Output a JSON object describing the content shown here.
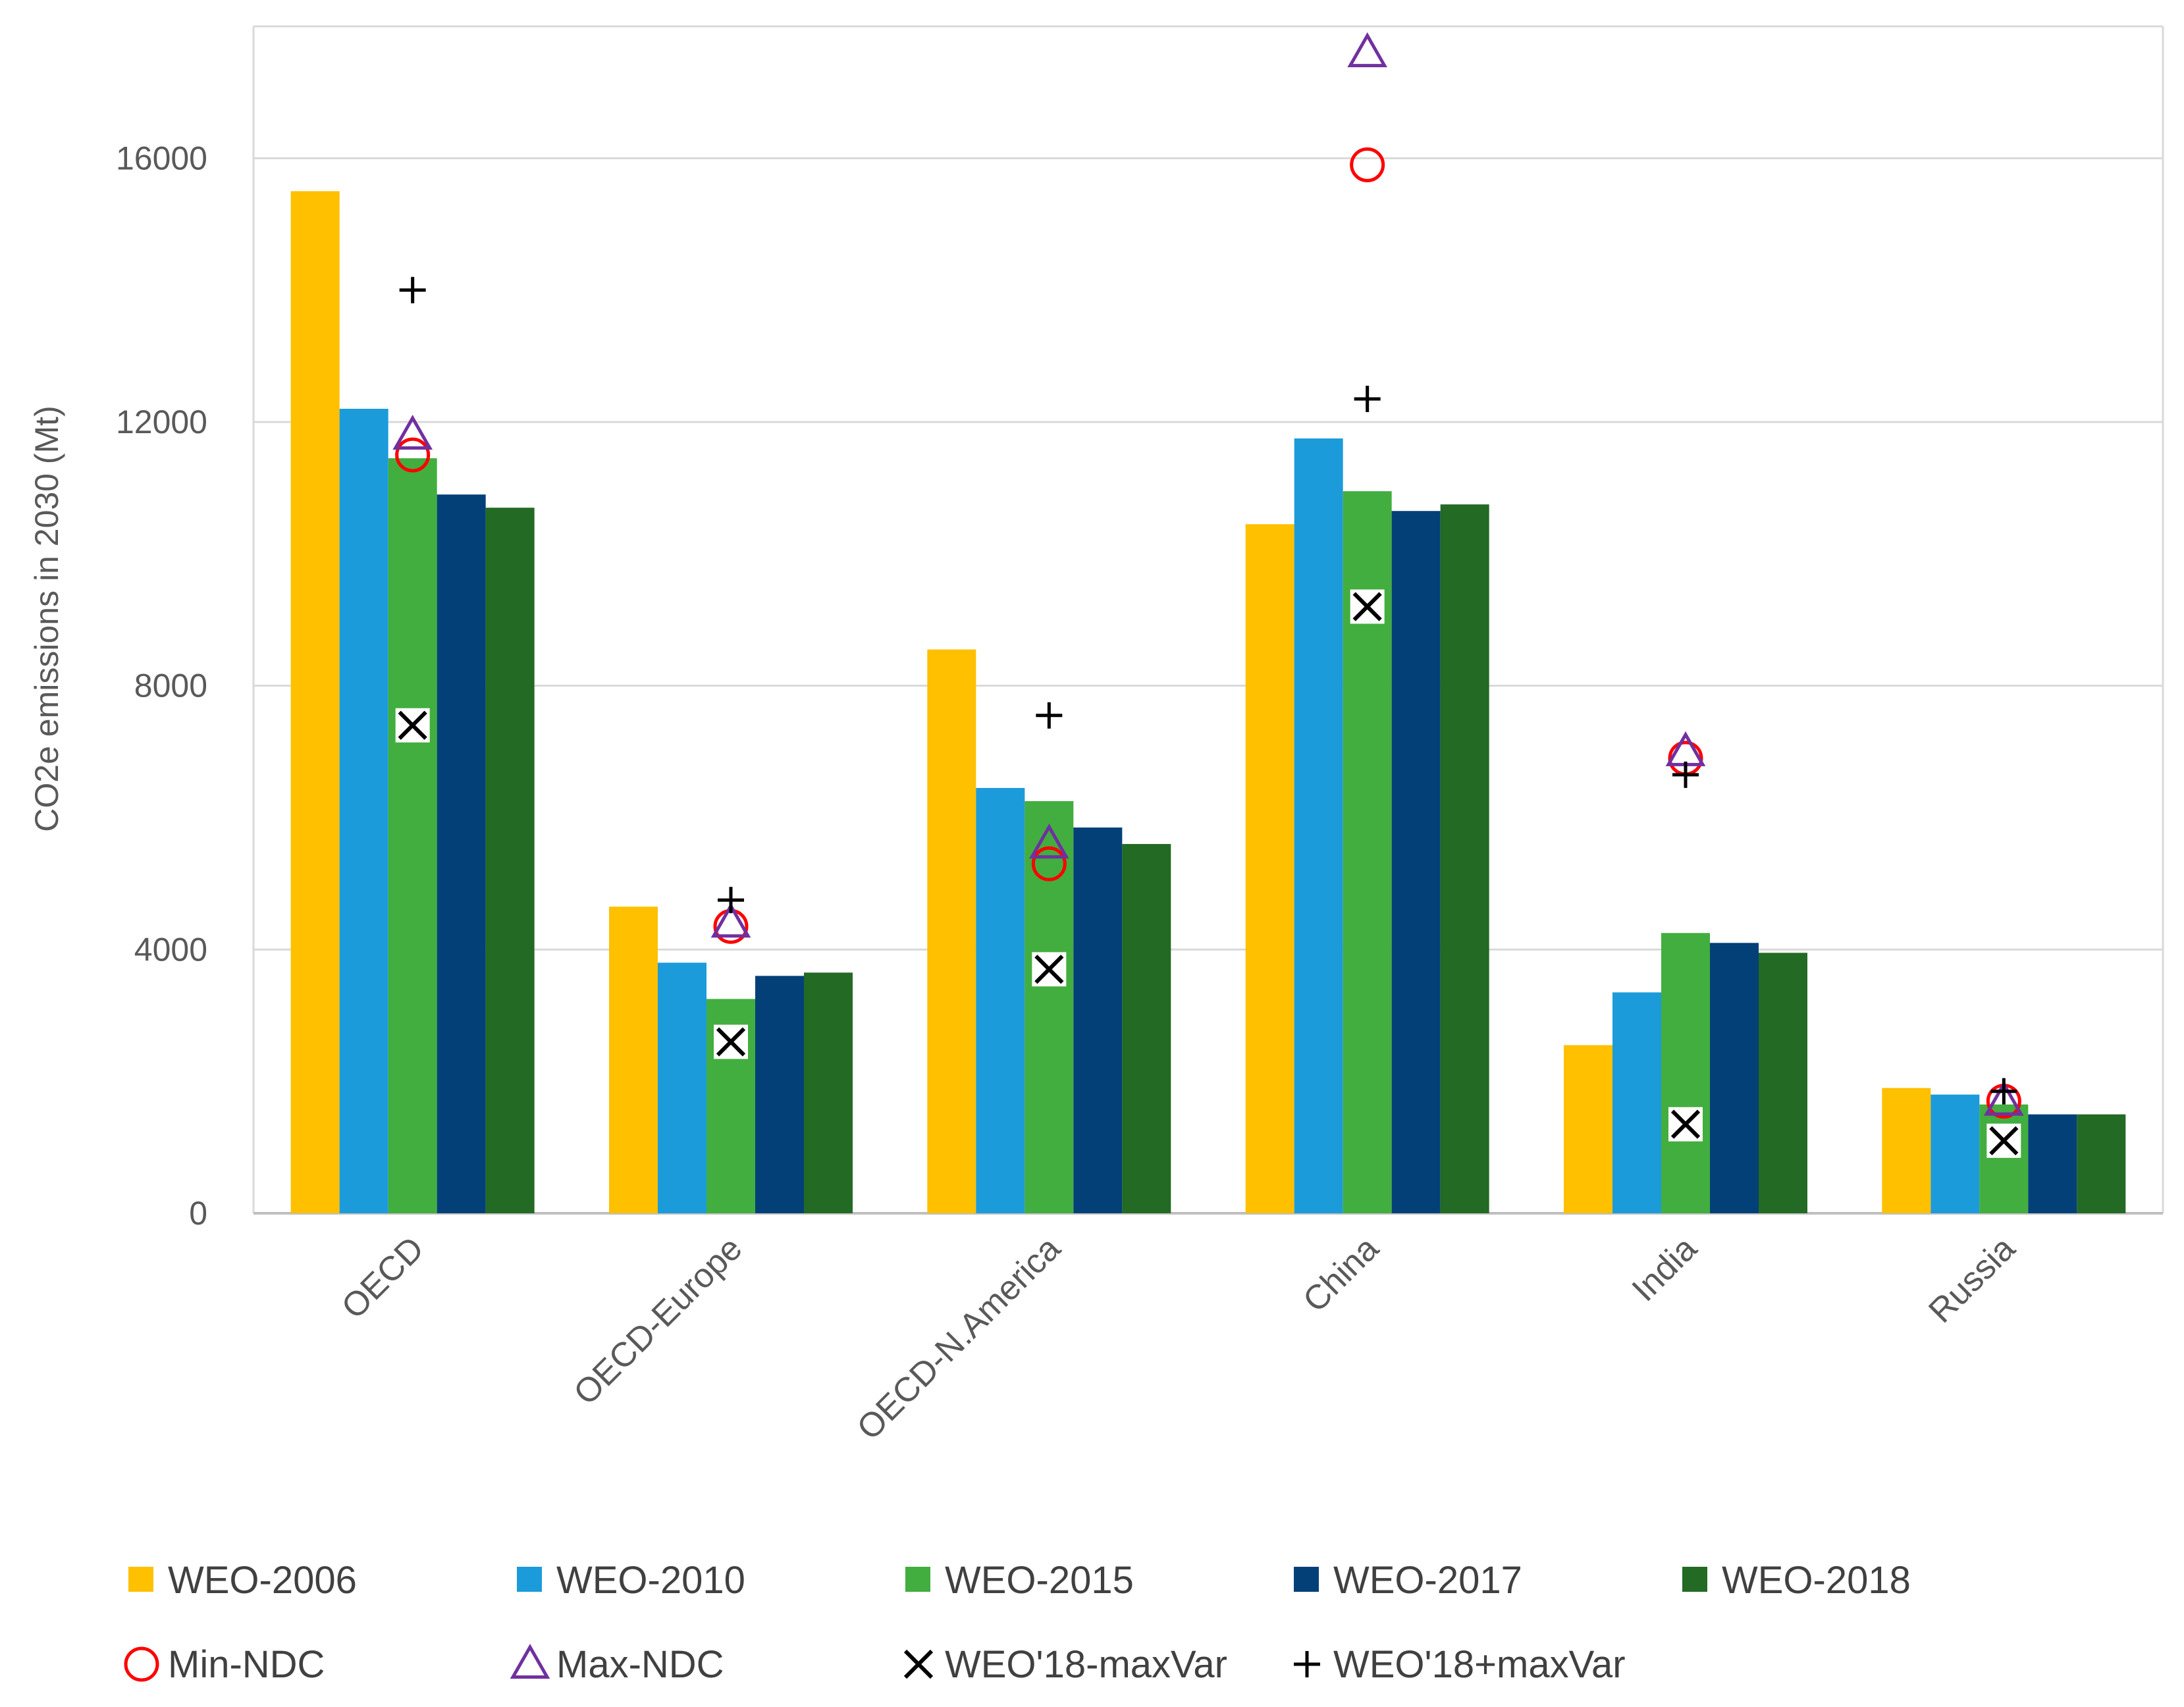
{
  "chart_data": {
    "type": "bar",
    "title": "",
    "xlabel": "",
    "ylabel": "CO2e emissions in 2030 (Mt)",
    "ylim": [
      0,
      18000
    ],
    "yticks": [
      0,
      4000,
      8000,
      12000,
      16000
    ],
    "grid": true,
    "categories": [
      "OECD",
      "OECD-Europe",
      "OECD-N.America",
      "China",
      "India",
      "Russia"
    ],
    "series": [
      {
        "name": "WEO-2006",
        "color": "#FFC000",
        "values": [
          15500,
          4650,
          8550,
          10450,
          2550,
          1900
        ]
      },
      {
        "name": "WEO-2010",
        "color": "#1C9BDA",
        "values": [
          12200,
          3800,
          6450,
          11750,
          3350,
          1800
        ]
      },
      {
        "name": "WEO-2015",
        "color": "#42AE3F",
        "values": [
          11450,
          3250,
          6250,
          10950,
          4250,
          1650
        ]
      },
      {
        "name": "WEO-2017",
        "color": "#034078",
        "values": [
          10900,
          3600,
          5850,
          10650,
          4100,
          1500
        ]
      },
      {
        "name": "WEO-2018",
        "color": "#236A24",
        "values": [
          10700,
          3650,
          5600,
          10750,
          3950,
          1500
        ]
      }
    ],
    "markers": [
      {
        "name": "Min-NDC",
        "symbol": "circle",
        "color": "#FF0000",
        "values": [
          11500,
          4350,
          5300,
          15900,
          6900,
          1700
        ]
      },
      {
        "name": "Max-NDC",
        "symbol": "triangle",
        "color": "#7030A0",
        "values": [
          11800,
          4400,
          5600,
          17600,
          7000,
          1700
        ]
      },
      {
        "name": "WEO'18-maxVar",
        "symbol": "x",
        "color": "#000000",
        "values": [
          7400,
          2600,
          3700,
          9200,
          1350,
          1100
        ]
      },
      {
        "name": "WEO'18+maxVar",
        "symbol": "plus",
        "color": "#000000",
        "values": [
          14000,
          4750,
          7550,
          12350,
          6650,
          1850
        ]
      }
    ]
  }
}
